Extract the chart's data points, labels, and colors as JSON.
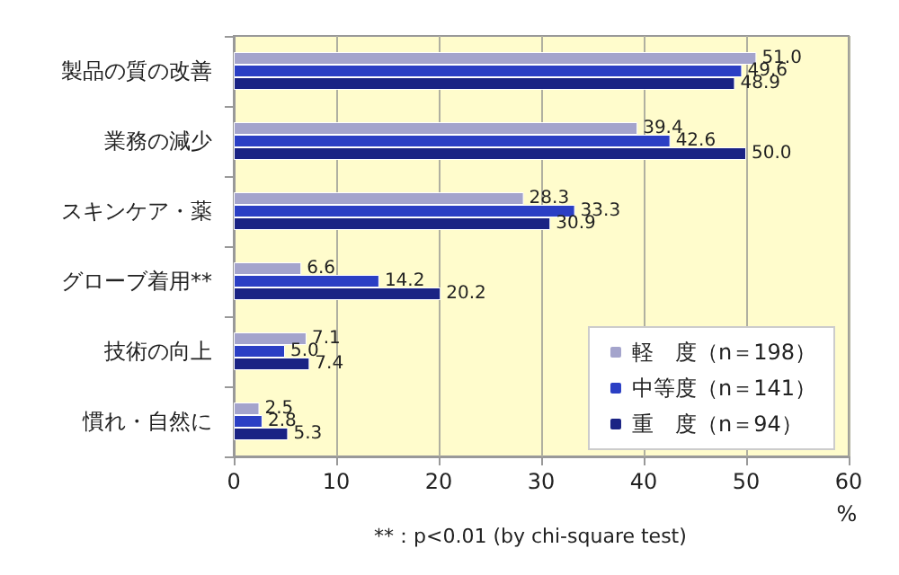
{
  "chart_data": {
    "type": "bar",
    "orientation": "horizontal",
    "xlabel": "%",
    "categories": [
      "製品の質の改善",
      "業務の減少",
      "スキンケア・薬",
      "グローブ着用**",
      "技術の向上",
      "慣れ・自然に"
    ],
    "series": [
      {
        "name": "軽　度（n＝198）",
        "color": "#a4a4cc",
        "values": [
          51.0,
          39.4,
          28.3,
          6.6,
          7.1,
          2.5
        ],
        "value_labels": [
          "51.0",
          "39.4",
          "28.3",
          "6.6",
          "7.1",
          "2.5"
        ]
      },
      {
        "name": "中等度（n＝141）",
        "color": "#2b3fc4",
        "values": [
          49.6,
          42.6,
          33.3,
          14.2,
          5.0,
          2.8
        ],
        "value_labels": [
          "49.6",
          "42.6",
          "33.3",
          "14.2",
          "5.0",
          "2.8"
        ]
      },
      {
        "name": "重　度（n＝94）",
        "color": "#1a2384",
        "values": [
          48.9,
          50.0,
          30.9,
          20.2,
          7.4,
          5.3
        ],
        "value_labels": [
          "48.9",
          "50.0",
          "30.9",
          "20.2",
          "7.4",
          "5.3"
        ]
      }
    ],
    "xlim": [
      0,
      60
    ],
    "xticks": [
      0,
      10,
      20,
      30,
      40,
      50,
      60
    ],
    "grid": "x",
    "legend": "bottom right",
    "annotations": [
      "**：p<0.01 (by chi-square test)"
    ]
  }
}
